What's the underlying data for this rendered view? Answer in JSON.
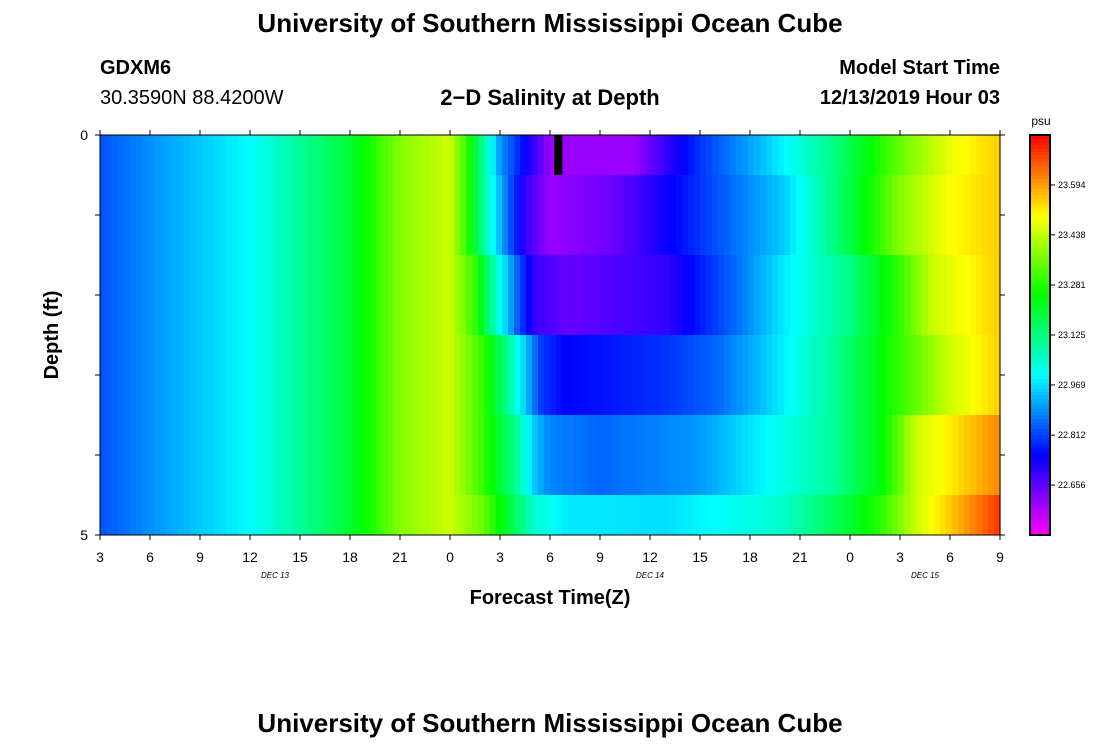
{
  "header": {
    "title_top": "University of Southern Mississippi Ocean Cube",
    "station_id": "GDXM6",
    "station_coords": "30.3590N 88.4200W",
    "chart_title": "2−D Salinity at Depth",
    "model_start_label": "Model Start Time",
    "model_start_value": "12/13/2019 Hour 03",
    "title_bottom": "University of Southern Mississippi Ocean Cube"
  },
  "chart_data": {
    "type": "heatmap",
    "title": "2−D Salinity at Depth",
    "xlabel": "Forecast Time(Z)",
    "ylabel": "Depth (ft)",
    "ylim": [
      0,
      5
    ],
    "y_tick_labels": [
      "0",
      "",
      "",
      "",
      "",
      "5"
    ],
    "x_tick_labels": [
      "3",
      "6",
      "9",
      "12",
      "15",
      "18",
      "21",
      "0",
      "3",
      "6",
      "9",
      "12",
      "15",
      "18",
      "21",
      "0",
      "3",
      "6",
      "9"
    ],
    "day_labels": [
      {
        "text": "DEC 13",
        "tick_index": 3.5
      },
      {
        "text": "DEC 14",
        "tick_index": 11
      },
      {
        "text": "DEC 15",
        "tick_index": 16.5
      }
    ],
    "x_range_hours": [
      0,
      54
    ],
    "depth_layers": 5,
    "colorbar": {
      "unit": "psu",
      "min": 22.5,
      "max": 23.75,
      "tick_values": [
        22.656,
        22.812,
        22.969,
        23.125,
        23.281,
        23.438,
        23.594
      ],
      "tick_labels": [
        "22.656",
        "22.812",
        "22.969",
        "23.125",
        "23.281",
        "23.438",
        "23.594"
      ]
    },
    "series": [
      {
        "depth_range": [
          0,
          0.5
        ],
        "keys": [
          [
            0,
            22.83
          ],
          [
            5,
            22.93
          ],
          [
            9,
            23.0
          ],
          [
            15,
            23.2
          ],
          [
            18,
            23.38
          ],
          [
            21,
            23.45
          ],
          [
            22,
            23.3
          ],
          [
            23,
            23.1
          ],
          [
            24,
            22.9
          ],
          [
            25,
            22.8
          ],
          [
            27,
            22.6
          ],
          [
            32,
            22.6
          ],
          [
            36,
            22.8
          ],
          [
            40,
            22.95
          ],
          [
            44,
            23.12
          ],
          [
            48,
            23.35
          ],
          [
            51,
            23.48
          ],
          [
            54,
            23.55
          ]
        ]
      },
      {
        "depth_range": [
          0.5,
          1.5
        ],
        "keys": [
          [
            0,
            22.83
          ],
          [
            5,
            22.93
          ],
          [
            9,
            23.0
          ],
          [
            15,
            23.2
          ],
          [
            18,
            23.38
          ],
          [
            21,
            23.45
          ],
          [
            22,
            23.3
          ],
          [
            23,
            23.1
          ],
          [
            24.5,
            22.85
          ],
          [
            25.5,
            22.7
          ],
          [
            27,
            22.6
          ],
          [
            31,
            22.65
          ],
          [
            36,
            22.8
          ],
          [
            41,
            22.95
          ],
          [
            44,
            23.12
          ],
          [
            48,
            23.38
          ],
          [
            51,
            23.5
          ],
          [
            54,
            23.55
          ]
        ]
      },
      {
        "depth_range": [
          1.5,
          2.5
        ],
        "keys": [
          [
            0,
            22.83
          ],
          [
            5,
            22.93
          ],
          [
            9,
            23.0
          ],
          [
            15,
            23.2
          ],
          [
            18,
            23.38
          ],
          [
            21,
            23.45
          ],
          [
            22.5,
            23.3
          ],
          [
            23.5,
            23.1
          ],
          [
            25,
            22.85
          ],
          [
            26,
            22.7
          ],
          [
            28,
            22.65
          ],
          [
            34,
            22.7
          ],
          [
            38,
            22.85
          ],
          [
            41,
            22.98
          ],
          [
            45,
            23.12
          ],
          [
            48,
            23.3
          ],
          [
            50,
            23.45
          ],
          [
            54,
            23.55
          ]
        ]
      },
      {
        "depth_range": [
          2.5,
          3.5
        ],
        "keys": [
          [
            0,
            22.83
          ],
          [
            5,
            22.93
          ],
          [
            9,
            23.0
          ],
          [
            15,
            23.2
          ],
          [
            18,
            23.38
          ],
          [
            21,
            23.45
          ],
          [
            23,
            23.3
          ],
          [
            24.5,
            23.1
          ],
          [
            25.5,
            22.95
          ],
          [
            26.5,
            22.8
          ],
          [
            28,
            22.75
          ],
          [
            34,
            22.8
          ],
          [
            37,
            22.85
          ],
          [
            40,
            22.95
          ],
          [
            44,
            23.1
          ],
          [
            48,
            23.3
          ],
          [
            51,
            23.45
          ],
          [
            54,
            23.55
          ]
        ]
      },
      {
        "depth_range": [
          3.5,
          4.5
        ],
        "keys": [
          [
            0,
            22.83
          ],
          [
            5,
            22.93
          ],
          [
            9,
            23.0
          ],
          [
            15,
            23.2
          ],
          [
            18,
            23.38
          ],
          [
            21,
            23.45
          ],
          [
            23,
            23.3
          ],
          [
            25,
            23.1
          ],
          [
            26,
            22.95
          ],
          [
            27,
            22.88
          ],
          [
            30,
            22.85
          ],
          [
            36,
            22.9
          ],
          [
            40,
            23.0
          ],
          [
            44,
            23.1
          ],
          [
            47,
            23.25
          ],
          [
            49,
            23.45
          ],
          [
            52,
            23.55
          ],
          [
            54,
            23.62
          ]
        ]
      },
      {
        "depth_range": [
          4.5,
          5
        ],
        "keys": [
          [
            0,
            22.83
          ],
          [
            5,
            22.93
          ],
          [
            9,
            23.0
          ],
          [
            15,
            23.2
          ],
          [
            18,
            23.38
          ],
          [
            21,
            23.45
          ],
          [
            23,
            23.35
          ],
          [
            25,
            23.15
          ],
          [
            26,
            23.05
          ],
          [
            28,
            22.98
          ],
          [
            34,
            22.97
          ],
          [
            41,
            23.05
          ],
          [
            45,
            23.2
          ],
          [
            47,
            23.3
          ],
          [
            49,
            23.45
          ],
          [
            52,
            23.6
          ],
          [
            54,
            23.7
          ]
        ]
      }
    ],
    "marker_hour": 27.5
  }
}
